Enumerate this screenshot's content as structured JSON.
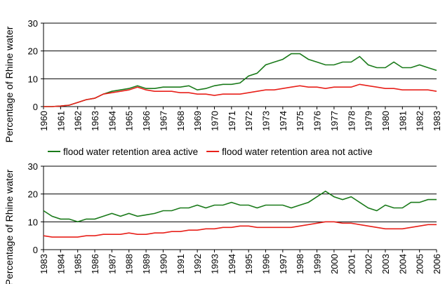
{
  "chart_data": [
    {
      "type": "line",
      "ylabel": "Percentage of Rhine water",
      "x": [
        1960,
        1960.5,
        1961,
        1961.5,
        1962,
        1962.5,
        1963,
        1963.5,
        1964,
        1964.5,
        1965,
        1965.5,
        1966,
        1966.5,
        1967,
        1967.5,
        1968,
        1968.5,
        1969,
        1969.5,
        1970,
        1970.5,
        1971,
        1971.5,
        1972,
        1972.5,
        1973,
        1973.5,
        1974,
        1974.5,
        1975,
        1975.5,
        1976,
        1976.5,
        1977,
        1977.5,
        1978,
        1978.5,
        1979,
        1979.5,
        1980,
        1980.5,
        1981,
        1981.5,
        1982,
        1982.5,
        1983
      ],
      "series": [
        {
          "name": "flood water retention area active",
          "color": "#1a7a1a",
          "values": [
            0,
            0,
            0.2,
            0.5,
            1.5,
            2.5,
            3,
            4.5,
            5.5,
            6,
            6.5,
            7.5,
            6.5,
            6.5,
            7,
            7,
            7,
            7.5,
            6,
            6.5,
            7.5,
            8,
            8,
            8.5,
            11,
            12,
            15,
            16,
            17,
            19,
            19,
            17,
            16,
            15,
            15,
            16,
            16,
            18,
            15,
            14,
            14,
            16,
            14,
            14,
            15,
            14,
            13
          ]
        },
        {
          "name": "flood water retention area not active",
          "color": "#e8201a",
          "values": [
            0,
            0,
            0.2,
            0.5,
            1.5,
            2.5,
            3,
            4.5,
            5,
            5.5,
            6,
            7,
            6,
            5.5,
            5.5,
            5.5,
            5,
            5,
            4.5,
            4.5,
            4,
            4.5,
            4.5,
            4.5,
            5,
            5.5,
            6,
            6,
            6.5,
            7,
            7.5,
            7,
            7,
            6.5,
            7,
            7,
            7,
            8,
            7.5,
            7,
            6.5,
            6.5,
            6,
            6,
            6,
            6,
            5.5
          ]
        }
      ],
      "xlim": [
        1960,
        1983
      ],
      "xticks": [
        1960,
        1961,
        1962,
        1963,
        1964,
        1965,
        1966,
        1967,
        1968,
        1969,
        1970,
        1971,
        1972,
        1973,
        1974,
        1975,
        1976,
        1977,
        1978,
        1979,
        1980,
        1981,
        1982,
        1983
      ],
      "ylim": [
        0,
        30
      ],
      "yticks": [
        0,
        10,
        20,
        30
      ],
      "grid": true
    },
    {
      "type": "line",
      "ylabel": "Percentage of Rhine water",
      "x": [
        1983,
        1983.5,
        1984,
        1984.5,
        1985,
        1985.5,
        1986,
        1986.5,
        1987,
        1987.5,
        1988,
        1988.5,
        1989,
        1989.5,
        1990,
        1990.5,
        1991,
        1991.5,
        1992,
        1992.5,
        1993,
        1993.5,
        1994,
        1994.5,
        1995,
        1995.5,
        1996,
        1996.5,
        1997,
        1997.5,
        1998,
        1998.5,
        1999,
        1999.5,
        2000,
        2000.5,
        2001,
        2001.5,
        2002,
        2002.5,
        2003,
        2003.5,
        2004,
        2004.5,
        2005,
        2005.5,
        2006
      ],
      "series": [
        {
          "color": "#1a7a1a",
          "values": [
            14,
            12,
            11,
            11,
            10,
            11,
            11,
            12,
            13,
            12,
            13,
            12,
            12.5,
            13,
            14,
            14,
            15,
            15,
            16,
            15,
            16,
            16,
            17,
            16,
            16,
            15,
            16,
            16,
            16,
            15,
            16,
            17,
            19,
            21,
            19,
            18,
            19,
            17,
            15,
            14,
            16,
            15,
            15,
            17,
            17,
            18,
            18
          ]
        },
        {
          "color": "#e8201a",
          "values": [
            5,
            4.5,
            4.5,
            4.5,
            4.5,
            5,
            5,
            5.5,
            5.5,
            5.5,
            6,
            5.5,
            5.5,
            6,
            6,
            6.5,
            6.5,
            7,
            7,
            7.5,
            7.5,
            8,
            8,
            8.5,
            8.5,
            8,
            8,
            8,
            8,
            8,
            8.5,
            9,
            9.5,
            10,
            10,
            9.5,
            9.5,
            9,
            8.5,
            8,
            7.5,
            7.5,
            7.5,
            8,
            8.5,
            9,
            9
          ]
        }
      ],
      "xlim": [
        1983,
        2006
      ],
      "xticks": [
        1983,
        1984,
        1985,
        1986,
        1987,
        1988,
        1989,
        1990,
        1991,
        1992,
        1993,
        1994,
        1995,
        1996,
        1997,
        1998,
        1999,
        2000,
        2001,
        2002,
        2003,
        2004,
        2005,
        2006
      ],
      "ylim": [
        0,
        30
      ],
      "yticks": [
        0,
        10,
        20,
        30
      ],
      "grid": true
    }
  ]
}
